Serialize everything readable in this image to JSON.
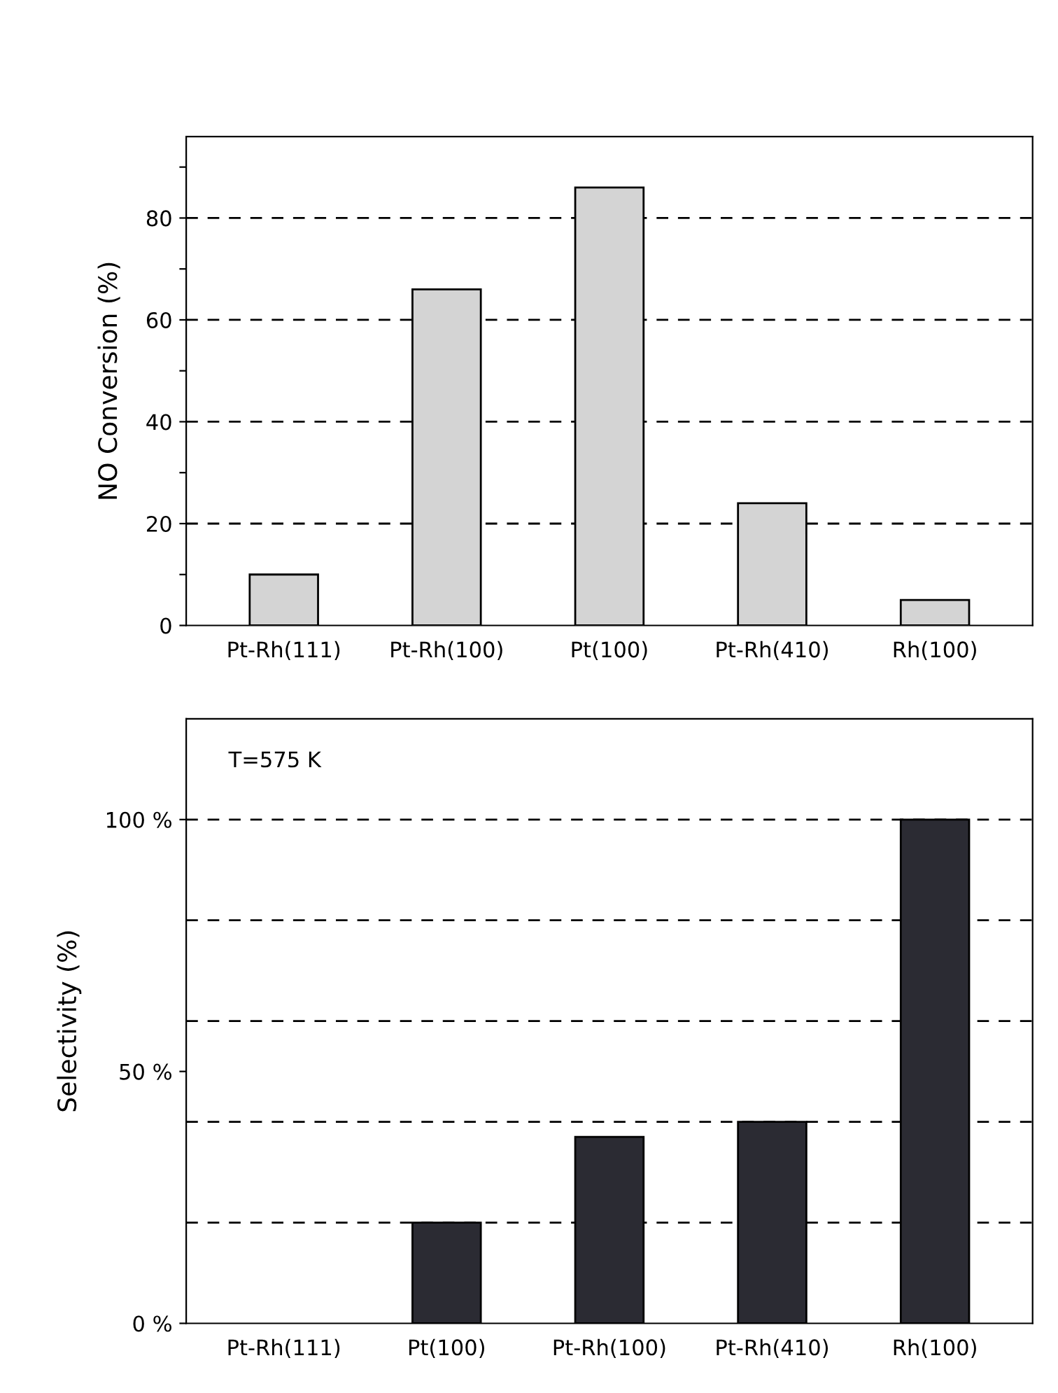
{
  "chart_data": [
    {
      "type": "bar",
      "ylabel": "NO Conversion (%)",
      "categories": [
        "Pt-Rh(111)",
        "Pt-Rh(100)",
        "Pt(100)",
        "Pt-Rh(410)",
        "Rh(100)"
      ],
      "series": [
        {
          "color": "#d4d4d4",
          "values": [
            10,
            66,
            86,
            24,
            5
          ]
        }
      ],
      "ylim": [
        0,
        96
      ],
      "yticks": [
        0,
        {
          "value": 10,
          "label": null
        },
        20,
        {
          "value": 30,
          "label": null
        },
        40,
        {
          "value": 50,
          "label": null
        },
        60,
        {
          "value": 70,
          "label": null
        },
        80,
        {
          "value": 90,
          "label": null
        }
      ],
      "grid": "y",
      "line_style": "dashed"
    },
    {
      "type": "bar",
      "ylabel": "Selectivity (%)",
      "categories": [
        "Pt-Rh(111)",
        "Pt(100)",
        "Pt-Rh(100)",
        "Pt-Rh(410)",
        "Rh(100)"
      ],
      "series": [
        {
          "color": "#2b2b33",
          "values": [
            0,
            20,
            37,
            40,
            100
          ]
        }
      ],
      "ylim": [
        0,
        120
      ],
      "yticks": [
        {
          "value": 0,
          "label": "0 %"
        },
        {
          "value": 50,
          "label": "50 %"
        },
        {
          "value": 100,
          "label": "100 %"
        }
      ],
      "ref_lines": [
        {
          "axis": "y",
          "value": 20,
          "line_style": "dashed"
        },
        {
          "axis": "y",
          "value": 40,
          "line_style": "dashed"
        },
        {
          "axis": "y",
          "value": 60,
          "line_style": "dashed"
        },
        {
          "axis": "y",
          "value": 80,
          "line_style": "dashed"
        },
        {
          "axis": "y",
          "value": 100,
          "line_style": "dashed"
        }
      ],
      "annotations": [
        "T=575 K"
      ]
    }
  ]
}
